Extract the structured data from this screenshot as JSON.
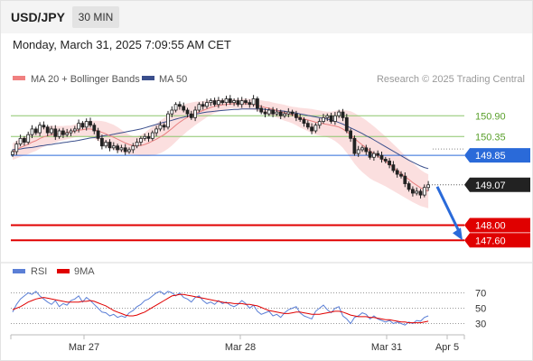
{
  "header": {
    "symbol": "USD/JPY",
    "timeframe": "30 MIN",
    "datetime": "Monday, March 31, 2025 7:09:55 AM CET"
  },
  "chart_data": [
    {
      "type": "candlestick",
      "legend": [
        {
          "name": "MA 20 + Bollinger Bands",
          "color": "#f08080"
        },
        {
          "name": "MA 50",
          "color": "#3b4f8c"
        }
      ],
      "legend_placement": "top-left",
      "watermark": "Research © 2025 Trading Central",
      "x_ticks": [
        "Mar 27",
        "Mar 28",
        "Mar 31",
        "Apr 5"
      ],
      "levels": [
        {
          "value": 150.9,
          "label": "150.90",
          "color": "#8cc56b",
          "style": "line",
          "label_style": "text"
        },
        {
          "value": 150.35,
          "label": "150.35",
          "color": "#8cc56b",
          "style": "line",
          "label_style": "text"
        },
        {
          "value": 149.85,
          "label": "149.85",
          "color": "#2a6ad9",
          "style": "line",
          "label_style": "tag"
        },
        {
          "value": 149.07,
          "label": "149.07",
          "color": "#222222",
          "style": "dotted",
          "label_style": "tag"
        },
        {
          "value": 148.0,
          "label": "148.00",
          "color": "#e00000",
          "style": "line",
          "label_style": "tag"
        },
        {
          "value": 147.6,
          "label": "147.60",
          "color": "#e00000",
          "style": "line",
          "label_style": "tag"
        }
      ],
      "forecast_arrow": {
        "from": 149.07,
        "to": 147.6,
        "color": "#2a6ad9"
      },
      "closes": [
        149.95,
        150.15,
        150.3,
        150.2,
        150.4,
        150.55,
        150.45,
        150.65,
        150.6,
        150.45,
        150.55,
        150.35,
        150.5,
        150.4,
        150.45,
        150.5,
        150.55,
        150.7,
        150.6,
        150.75,
        150.65,
        150.5,
        150.3,
        150.1,
        150.2,
        150.05,
        150.1,
        150.0,
        150.05,
        149.95,
        150.0,
        150.1,
        150.2,
        150.3,
        150.35,
        150.3,
        150.45,
        150.55,
        150.65,
        150.6,
        150.95,
        151.05,
        151.2,
        151.15,
        151.05,
        150.95,
        150.85,
        151.05,
        151.2,
        151.15,
        151.25,
        151.3,
        151.2,
        151.3,
        151.25,
        151.35,
        151.25,
        151.3,
        151.2,
        151.3,
        151.25,
        151.2,
        151.35,
        151.1,
        151.0,
        150.95,
        151.05,
        150.95,
        151.0,
        150.9,
        150.95,
        151.0,
        150.95,
        150.85,
        150.8,
        150.7,
        150.6,
        150.5,
        150.65,
        150.75,
        150.85,
        150.9,
        150.75,
        150.9,
        151.0,
        150.85,
        150.5,
        150.3,
        149.9,
        150.0,
        150.05,
        149.95,
        149.8,
        149.9,
        149.85,
        149.75,
        149.7,
        149.6,
        149.45,
        149.35,
        149.3,
        149.1,
        148.95,
        148.85,
        148.9,
        148.8,
        149.0,
        149.07
      ],
      "ma20": [
        149.95,
        150.0,
        150.06,
        150.1,
        150.14,
        150.2,
        150.24,
        150.3,
        150.34,
        150.37,
        150.4,
        150.41,
        150.43,
        150.44,
        150.46,
        150.47,
        150.5,
        150.52,
        150.53,
        150.55,
        150.55,
        150.53,
        150.5,
        150.46,
        150.42,
        150.37,
        150.33,
        150.28,
        150.23,
        150.18,
        150.14,
        150.11,
        150.1,
        150.11,
        150.14,
        150.18,
        150.23,
        150.28,
        150.34,
        150.4,
        150.48,
        150.56,
        150.65,
        150.73,
        150.8,
        150.86,
        150.91,
        150.96,
        151.0,
        151.04,
        151.08,
        151.12,
        151.15,
        151.17,
        151.19,
        151.2,
        151.21,
        151.22,
        151.22,
        151.22,
        151.22,
        151.21,
        151.2,
        151.18,
        151.15,
        151.12,
        151.1,
        151.07,
        151.04,
        151.01,
        150.98,
        150.95,
        150.92,
        150.89,
        150.85,
        150.82,
        150.79,
        150.76,
        150.73,
        150.71,
        150.69,
        150.67,
        150.65,
        150.63,
        150.6,
        150.55,
        150.48,
        150.4,
        150.3,
        150.21,
        150.13,
        150.05,
        149.97,
        149.9,
        149.83,
        149.76,
        149.69,
        149.61,
        149.53,
        149.45,
        149.37,
        149.29,
        149.21,
        149.13,
        149.06,
        148.99,
        148.94,
        148.9
      ],
      "bb_width": [
        0.22,
        0.23,
        0.25,
        0.25,
        0.26,
        0.27,
        0.27,
        0.27,
        0.26,
        0.25,
        0.24,
        0.22,
        0.2,
        0.19,
        0.18,
        0.17,
        0.17,
        0.18,
        0.19,
        0.2,
        0.22,
        0.24,
        0.27,
        0.3,
        0.32,
        0.33,
        0.33,
        0.32,
        0.3,
        0.28,
        0.26,
        0.25,
        0.26,
        0.28,
        0.31,
        0.35,
        0.38,
        0.41,
        0.43,
        0.44,
        0.45,
        0.45,
        0.44,
        0.42,
        0.4,
        0.37,
        0.34,
        0.31,
        0.28,
        0.25,
        0.22,
        0.2,
        0.18,
        0.16,
        0.14,
        0.13,
        0.12,
        0.12,
        0.12,
        0.13,
        0.13,
        0.14,
        0.14,
        0.15,
        0.16,
        0.17,
        0.18,
        0.18,
        0.19,
        0.2,
        0.21,
        0.21,
        0.22,
        0.24,
        0.26,
        0.28,
        0.3,
        0.32,
        0.33,
        0.33,
        0.33,
        0.34,
        0.36,
        0.4,
        0.45,
        0.5,
        0.56,
        0.62,
        0.67,
        0.7,
        0.72,
        0.73,
        0.73,
        0.72,
        0.7,
        0.68,
        0.66,
        0.64,
        0.62,
        0.6,
        0.58,
        0.56,
        0.54,
        0.52,
        0.5,
        0.48,
        0.46,
        0.45
      ],
      "ma50": [
        150.0,
        150.01,
        150.02,
        150.04,
        150.05,
        150.06,
        150.08,
        150.1,
        150.11,
        150.13,
        150.14,
        150.16,
        150.17,
        150.19,
        150.2,
        150.22,
        150.23,
        150.25,
        150.27,
        150.29,
        150.31,
        150.32,
        150.34,
        150.36,
        150.38,
        150.39,
        150.41,
        150.43,
        150.45,
        150.47,
        150.49,
        150.51,
        150.53,
        150.55,
        150.58,
        150.61,
        150.64,
        150.67,
        150.7,
        150.73,
        150.75,
        150.78,
        150.81,
        150.84,
        150.86,
        150.89,
        150.92,
        150.94,
        150.96,
        150.98,
        151.0,
        151.01,
        151.02,
        151.03,
        151.04,
        151.05,
        151.06,
        151.07,
        151.07,
        151.08,
        151.08,
        151.08,
        151.08,
        151.08,
        151.08,
        151.07,
        151.06,
        151.05,
        151.04,
        151.03,
        151.02,
        151.0,
        150.99,
        150.97,
        150.95,
        150.93,
        150.91,
        150.89,
        150.87,
        150.85,
        150.83,
        150.81,
        150.79,
        150.76,
        150.72,
        150.68,
        150.63,
        150.58,
        150.53,
        150.48,
        150.43,
        150.37,
        150.32,
        150.26,
        150.2,
        150.14,
        150.08,
        150.02,
        149.96,
        149.9,
        149.84,
        149.78,
        149.72,
        149.67,
        149.62,
        149.57,
        149.53,
        149.5
      ]
    },
    {
      "type": "line",
      "legend": [
        {
          "name": "RSI",
          "color": "#5b7fd6"
        },
        {
          "name": "9MA",
          "color": "#e00000"
        }
      ],
      "legend_placement": "top-left",
      "y_ticks": [
        70,
        50,
        30
      ],
      "ylim": [
        20,
        80
      ],
      "rsi": [
        45,
        55,
        62,
        66,
        70,
        68,
        72,
        66,
        62,
        58,
        55,
        60,
        52,
        56,
        54,
        60,
        62,
        66,
        58,
        64,
        60,
        55,
        50,
        45,
        44,
        40,
        42,
        38,
        40,
        38,
        44,
        47,
        52,
        55,
        60,
        62,
        66,
        70,
        72,
        68,
        72,
        70,
        66,
        70,
        64,
        62,
        58,
        64,
        66,
        60,
        56,
        58,
        55,
        60,
        56,
        58,
        54,
        52,
        55,
        60,
        56,
        50,
        54,
        46,
        42,
        44,
        46,
        40,
        42,
        38,
        44,
        48,
        50,
        52,
        44,
        40,
        38,
        36,
        46,
        50,
        54,
        48,
        44,
        50,
        52,
        40,
        36,
        30,
        38,
        40,
        44,
        42,
        36,
        40,
        36,
        34,
        32,
        34,
        30,
        32,
        30,
        28,
        32,
        30,
        34,
        33,
        38,
        40
      ],
      "ma9": [
        48,
        50,
        52,
        55,
        58,
        60,
        62,
        63,
        64,
        63,
        62,
        61,
        60,
        59,
        58,
        58,
        58,
        58,
        59,
        59,
        60,
        59,
        57,
        55,
        53,
        50,
        47,
        45,
        43,
        41,
        40,
        40,
        41,
        43,
        45,
        48,
        51,
        54,
        57,
        60,
        63,
        66,
        67,
        68,
        68,
        67,
        66,
        65,
        64,
        63,
        62,
        61,
        60,
        59,
        58,
        57,
        57,
        56,
        56,
        56,
        55,
        55,
        54,
        53,
        51,
        49,
        47,
        46,
        45,
        44,
        43,
        43,
        44,
        45,
        45,
        44,
        43,
        42,
        42,
        42,
        43,
        44,
        45,
        46,
        46,
        45,
        43,
        41,
        40,
        39,
        39,
        39,
        38,
        38,
        37,
        36,
        35,
        35,
        34,
        33,
        32,
        32,
        31,
        31,
        31,
        31,
        32,
        33
      ]
    }
  ]
}
